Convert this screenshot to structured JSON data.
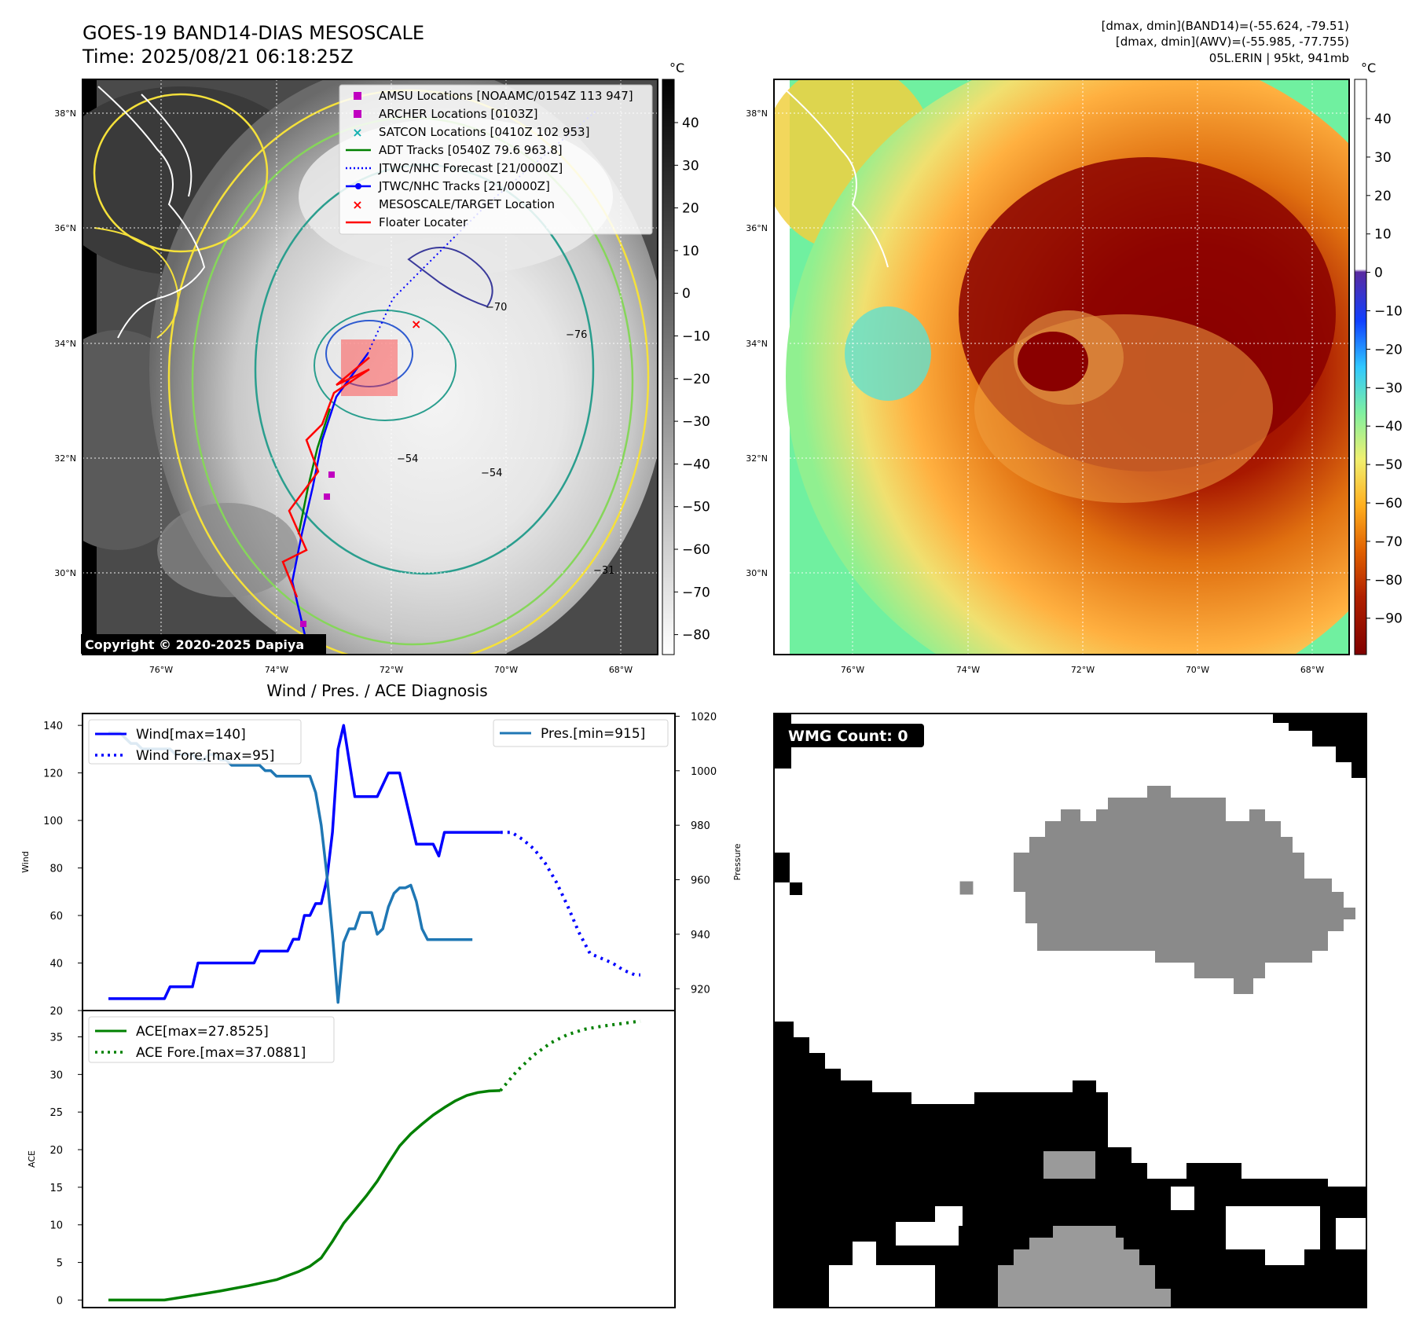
{
  "header": {
    "title_line1": "GOES-19 BAND14-DIAS MESOSCALE",
    "title_line2": "Time: 2025/08/21 06:18:25Z",
    "info_line1": "[dmax, dmin](BAND14)=(-55.624, -79.51)",
    "info_line2": "[dmax, dmin](AWV)=(-55.985, -77.755)",
    "info_line3": "05L.ERIN | 95kt, 941mb"
  },
  "map_ir": {
    "lat_labels": [
      "38°N",
      "36°N",
      "34°N",
      "32°N",
      "30°N"
    ],
    "lon_labels": [
      "76°W",
      "74°W",
      "72°W",
      "70°W",
      "68°W"
    ],
    "colorbar_unit": "°C",
    "colorbar_ticks": [
      "40",
      "30",
      "20",
      "10",
      "0",
      "−10",
      "−20",
      "−30",
      "−40",
      "−50",
      "−60",
      "−70",
      "−80"
    ],
    "contour_labels": [
      "−54",
      "−54",
      "−70",
      "−76",
      "−31"
    ],
    "copyright": "Copyright © 2020-2025 Dapiya",
    "legend": [
      {
        "label": "AMSU Locations [NOAAMC/0154Z 113 947]",
        "color": "#c000c0",
        "marker": "square"
      },
      {
        "label": "ARCHER Locations [0103Z]",
        "color": "#c000c0",
        "marker": "square"
      },
      {
        "label": "SATCON Locations [0410Z 102 953]",
        "color": "#10b0b0",
        "marker": "x"
      },
      {
        "label": "ADT Tracks [0540Z 79.6 963.8]",
        "color": "#008000",
        "marker": "line"
      },
      {
        "label": "JTWC/NHC Forecast [21/0000Z]",
        "color": "#0000ff",
        "marker": "dotted"
      },
      {
        "label": "JTWC/NHC Tracks [21/0000Z]",
        "color": "#0000ff",
        "marker": "line-dot"
      },
      {
        "label": "MESOSCALE/TARGET Location",
        "color": "#ff0000",
        "marker": "x"
      },
      {
        "label": "Floater Locater",
        "color": "#ff0000",
        "marker": "line"
      }
    ]
  },
  "map_awv": {
    "lat_labels": [
      "38°N",
      "36°N",
      "34°N",
      "32°N",
      "30°N"
    ],
    "lon_labels": [
      "76°W",
      "74°W",
      "72°W",
      "70°W",
      "68°W"
    ],
    "colorbar_unit": "°C",
    "colorbar_ticks": [
      "40",
      "30",
      "20",
      "10",
      "0",
      "−10",
      "−20",
      "−30",
      "−40",
      "−50",
      "−60",
      "−70",
      "−80",
      "−90"
    ]
  },
  "chart_data": [
    {
      "type": "line",
      "title": "Wind / Pres. / ACE Diagnosis",
      "ylabel": "Wind",
      "ylabel_right": "Pressure",
      "ylim": [
        20,
        145
      ],
      "ylim_right": [
        912,
        1021
      ],
      "yticks": [
        20,
        40,
        60,
        80,
        100,
        120,
        140
      ],
      "yticks_right": [
        920,
        940,
        960,
        980,
        1000,
        1020
      ],
      "x": [
        0,
        1,
        2,
        3,
        4,
        5,
        6,
        7,
        8,
        9,
        10,
        11,
        12,
        13,
        14,
        15,
        16,
        17,
        18,
        19,
        20,
        21,
        22,
        23,
        24,
        25,
        26,
        27,
        28,
        29,
        30,
        31,
        32,
        33,
        34,
        35,
        36,
        37,
        38,
        39,
        40,
        41,
        42,
        43,
        44,
        45,
        46,
        47,
        48,
        49,
        50,
        51,
        52,
        53,
        54,
        55,
        56,
        57,
        58,
        59,
        60,
        61,
        62,
        63,
        64,
        65,
        66,
        67,
        68,
        69,
        70,
        71,
        72,
        73,
        74,
        75,
        76,
        77
      ],
      "series": [
        {
          "name": "Wind[max=140]",
          "axis": "left",
          "color": "#0000ff",
          "style": "solid",
          "x": [
            0,
            10,
            11,
            15,
            16,
            26,
            27,
            32,
            33,
            34,
            35,
            36,
            37,
            38,
            39,
            40,
            41,
            42,
            43,
            44,
            45,
            46,
            47,
            48,
            49,
            50,
            51,
            52,
            53,
            54,
            55,
            56,
            57,
            58,
            59,
            60,
            61,
            62,
            63,
            64,
            65,
            66,
            67,
            68,
            69,
            70
          ],
          "values": [
            25,
            25,
            30,
            30,
            40,
            40,
            45,
            45,
            50,
            50,
            60,
            60,
            65,
            65,
            75,
            95,
            130,
            140,
            125,
            110,
            110,
            110,
            110,
            110,
            115,
            120,
            120,
            120,
            110,
            100,
            90,
            90,
            90,
            90,
            85,
            95,
            95,
            95,
            95,
            95,
            95,
            95,
            95,
            95,
            95,
            95
          ]
        },
        {
          "name": "Wind Fore.[max=95]",
          "axis": "left",
          "color": "#0000ff",
          "style": "dotted",
          "x": [
            70,
            72,
            74,
            76,
            78,
            80,
            82,
            84,
            86,
            88,
            90,
            92,
            94,
            95
          ],
          "values": [
            95,
            95,
            92,
            88,
            82,
            74,
            64,
            53,
            44,
            42,
            40,
            37,
            35,
            35
          ]
        },
        {
          "name": "Pres.[min=915]",
          "axis": "right",
          "color": "#1f77b4",
          "style": "solid",
          "x": [
            0,
            1,
            2,
            3,
            4,
            5,
            6,
            7,
            8,
            9,
            10,
            11,
            12,
            13,
            14,
            15,
            16,
            17,
            18,
            19,
            20,
            21,
            22,
            23,
            24,
            25,
            26,
            27,
            28,
            29,
            30,
            31,
            32,
            33,
            34,
            35,
            36,
            37,
            38,
            39,
            40,
            41,
            42,
            43,
            44,
            45,
            46,
            47,
            48,
            49,
            50,
            51,
            52,
            53,
            54,
            55,
            56,
            57,
            58,
            59,
            60,
            61,
            62,
            63,
            64,
            65
          ],
          "values": [
            1014,
            1014,
            1014,
            1012,
            1010,
            1010,
            1008,
            1008,
            1008,
            1008,
            1008,
            1008,
            1006,
            1006,
            1006,
            1006,
            1004,
            1004,
            1006,
            1006,
            1004,
            1004,
            1002,
            1002,
            1002,
            1002,
            1002,
            1002,
            1000,
            1000,
            998,
            998,
            998,
            998,
            998,
            998,
            998,
            992,
            980,
            962,
            940,
            915,
            937,
            942,
            942,
            948,
            948,
            948,
            940,
            942,
            950,
            955,
            957,
            957,
            958,
            952,
            942,
            938,
            938,
            938,
            938,
            938,
            938,
            938,
            938,
            938
          ]
        },
        {
          "name": "ACE[max=27.8525]",
          "axis": "ace",
          "color": "#008000",
          "style": "solid",
          "x": [
            0,
            5,
            10,
            15,
            20,
            25,
            30,
            34,
            36,
            38,
            40,
            42,
            44,
            46,
            48,
            50,
            52,
            54,
            56,
            58,
            60,
            62,
            64,
            66,
            68,
            70
          ],
          "values": [
            0,
            0,
            0,
            0.6,
            1.2,
            1.9,
            2.7,
            3.8,
            4.5,
            5.6,
            7.8,
            10.2,
            12.0,
            13.8,
            15.8,
            18.2,
            20.5,
            22.1,
            23.4,
            24.6,
            25.6,
            26.5,
            27.2,
            27.6,
            27.8,
            27.85
          ]
        },
        {
          "name": "ACE Fore.[max=37.0881]",
          "axis": "ace",
          "color": "#008000",
          "style": "dotted",
          "x": [
            70,
            73,
            76,
            79,
            82,
            85,
            88,
            91,
            94,
            95
          ],
          "values": [
            27.85,
            30.5,
            32.6,
            34.2,
            35.3,
            36.0,
            36.4,
            36.7,
            37.0,
            37.09
          ]
        }
      ],
      "ace_ylabel": "ACE",
      "ace_ylim": [
        -1,
        38.5
      ],
      "ace_yticks": [
        0,
        5,
        10,
        15,
        20,
        25,
        30,
        35
      ]
    }
  ],
  "wmg": {
    "label": "WMG Count: 0"
  }
}
